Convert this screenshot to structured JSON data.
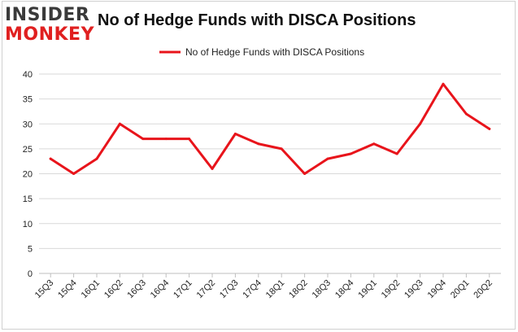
{
  "logo": {
    "line1": "INSIDER",
    "line2": "MONKEY"
  },
  "colors": {
    "series": "#e8141b",
    "grid": "#d9d9d9",
    "axis": "#bfbfbf",
    "frame": "#d0d0d0"
  },
  "chart_data": {
    "type": "line",
    "title": "No of Hedge Funds with DISCA Positions",
    "xlabel": "",
    "ylabel": "",
    "ylim": [
      0,
      40
    ],
    "yticks": [
      0,
      5,
      10,
      15,
      20,
      25,
      30,
      35,
      40
    ],
    "grid": true,
    "legend": "top-center",
    "categories": [
      "15Q3",
      "15Q4",
      "16Q1",
      "16Q2",
      "16Q3",
      "16Q4",
      "17Q1",
      "17Q2",
      "17Q3",
      "17Q4",
      "18Q1",
      "18Q2",
      "18Q3",
      "18Q4",
      "19Q1",
      "19Q2",
      "19Q3",
      "19Q4",
      "20Q1",
      "20Q2"
    ],
    "series": [
      {
        "name": "No of Hedge Funds with DISCA Positions",
        "values": [
          23,
          20,
          23,
          30,
          27,
          27,
          27,
          21,
          28,
          26,
          25,
          20,
          23,
          24,
          26,
          24,
          30,
          38,
          32,
          29
        ]
      }
    ]
  }
}
